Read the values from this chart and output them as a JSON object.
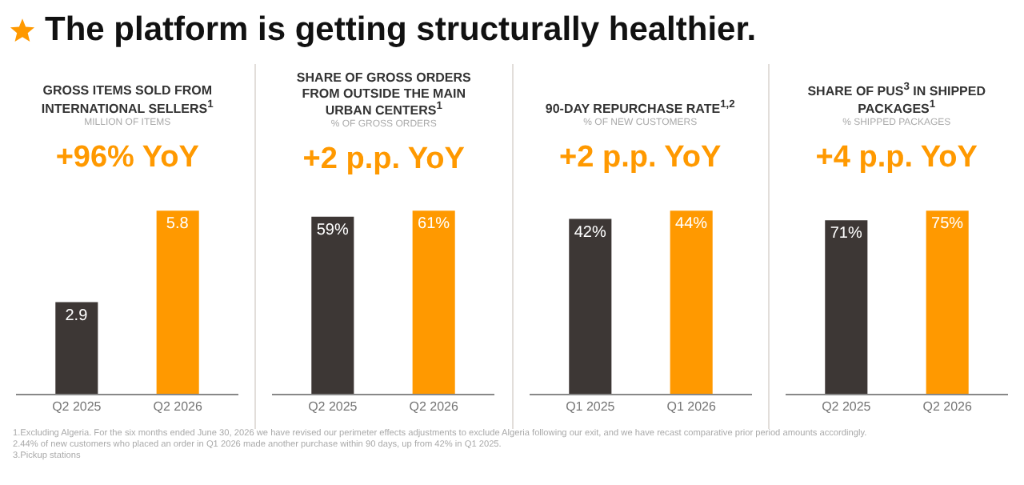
{
  "chart_data": [
    {
      "type": "bar",
      "title": "GROSS ITEMS SOLD FROM INTERNATIONAL SELLERS$^{1}$",
      "subtitle": "MILLION OF ITEMS",
      "categories": [
        "Q2 2025",
        "Q2 2026"
      ],
      "values": [
        2.9,
        5.8
      ],
      "colors": [
        "#3d3735",
        "#ff9900"
      ],
      "data_labels": true,
      "annotations": [
        "The platform is getting structurally healthier.",
        "+96% YoY"
      ]
    },
    {
      "type": "bar",
      "title": "SHARE OF GROSS ORDERS FROM OUTSIDE THE MAIN URBAN CENTERS$^{1}$",
      "subtitle": "% OF GROSS ORDERS",
      "categories": [
        "Q2 2025",
        "Q2 2026"
      ],
      "values": [
        59,
        61
      ],
      "value_labels": [
        "59%",
        "61%"
      ],
      "colors": [
        "#3d3735",
        "#ff9900"
      ],
      "annotations": [
        "+2 p.p. YoY"
      ]
    },
    {
      "type": "bar",
      "title": "90-DAY REPURCHASE RATE$^{1,2}$",
      "subtitle": "% OF NEW CUSTOMERS",
      "categories": [
        "Q1 2025",
        "Q1 2026"
      ],
      "values": [
        42,
        44
      ],
      "value_labels": [
        "42%",
        "44%"
      ],
      "colors": [
        "#3d3735",
        "#ff9900"
      ],
      "annotations": [
        "+2 p.p. YoY"
      ]
    },
    {
      "type": "bar",
      "title": "SHARE OF PUS$^{3}$ IN SHIPPED PACKAGES$^{1}$",
      "subtitle": "% SHIPPED PACKAGES",
      "categories": [
        "Q2 2025",
        "Q2 2026"
      ],
      "values": [
        71,
        75
      ],
      "value_labels": [
        "71%",
        "75%"
      ],
      "colors": [
        "#3d3735",
        "#ff9900"
      ],
      "annotations": [
        "+4 p.p. YoY",
        "1.Excluding Algeria.  For the six months ended June 30, 2026  we have revised our perimeter effects adjustments to exclude Algeria following our exit, and we have recast comparative prior period amounts accordingly.",
        "2.44% of new customers who placed an order in Q1 2026 made another purchase within 90 days, up from 42% in Q1 2025.",
        "3.Pickup stations"
      ]
    }
  ]
}
